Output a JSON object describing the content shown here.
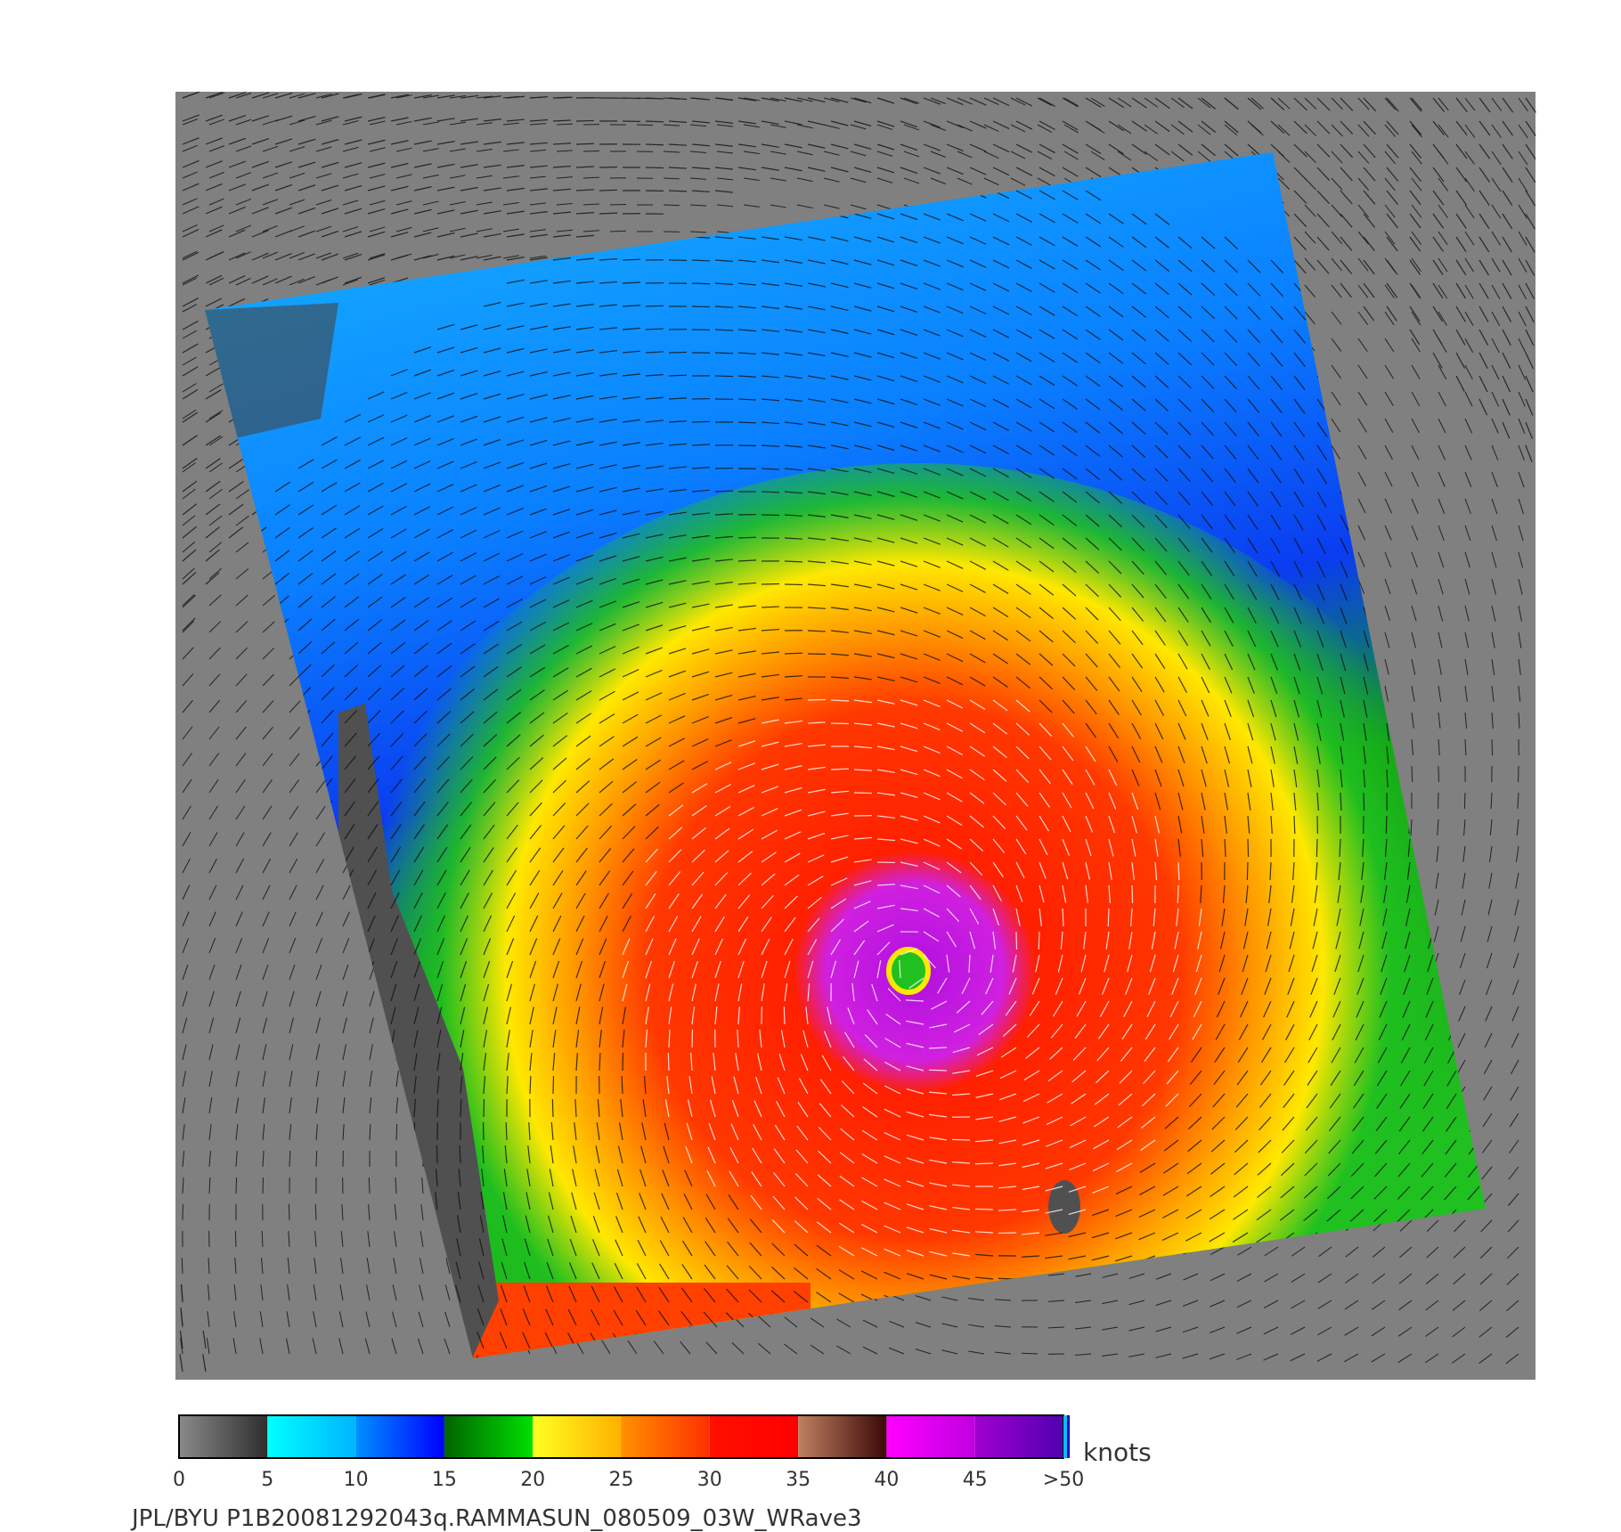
{
  "colorbar": {
    "unit": "knots",
    "lim": [
      0,
      50
    ],
    "ticks": [
      0,
      5,
      10,
      15,
      20,
      25,
      30,
      35,
      40,
      45,
      {
        "value": 50,
        "label": ">50"
      }
    ],
    "segments": [
      [
        "#8a8a8a",
        "#2e2e2e"
      ],
      [
        "#00ffff",
        "#00b4ff"
      ],
      [
        "#0090ff",
        "#0000ff"
      ],
      [
        "#006400",
        "#00e000"
      ],
      [
        "#ffff20",
        "#ffb000"
      ],
      [
        "#ff9000",
        "#ff3000"
      ],
      [
        "#ff1000",
        "#ff0000"
      ],
      [
        "#c08060",
        "#3a0808"
      ],
      [
        "#ff00ff",
        "#c000e0"
      ],
      [
        "#a000d0",
        "#5000b0"
      ]
    ]
  },
  "footer": "JPL/BYU  P1B20081292043q.RAMMASUN_080509_03W_WRave3"
}
